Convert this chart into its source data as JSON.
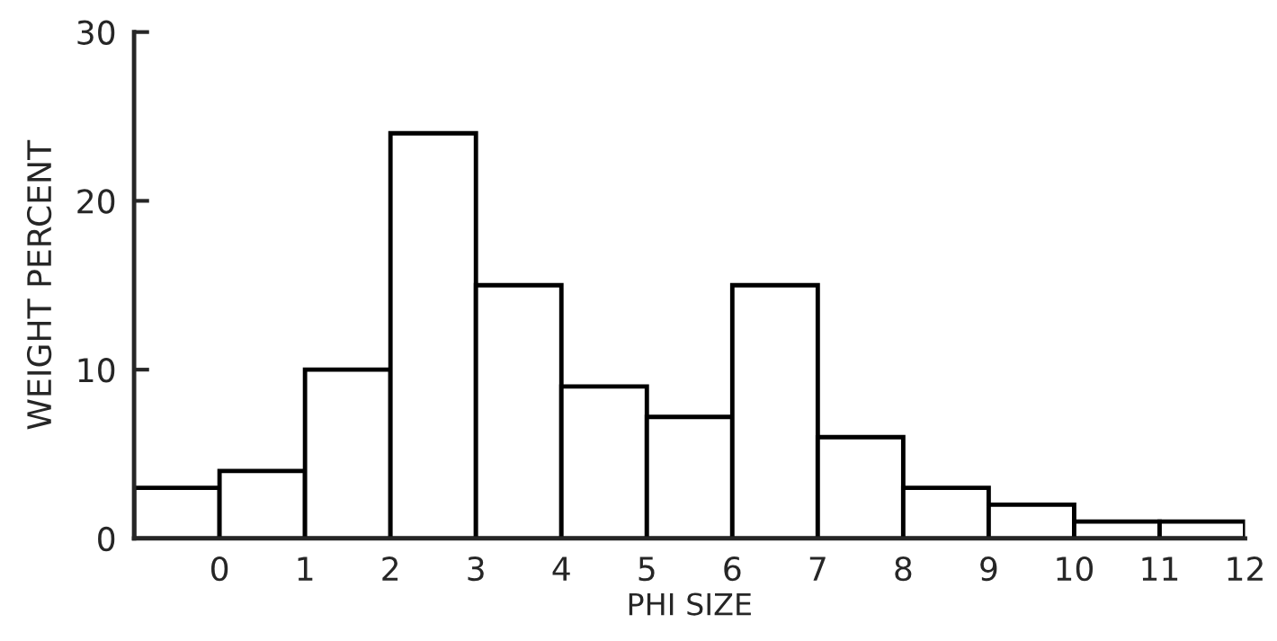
{
  "chart_data": {
    "type": "histogram",
    "xlabel": "PHI SIZE",
    "ylabel": "WEIGHT PERCENT",
    "bins": [
      -1,
      0,
      1,
      2,
      3,
      4,
      5,
      6,
      7,
      8,
      9,
      10,
      11,
      12
    ],
    "values": [
      3,
      4,
      10,
      24,
      15,
      9,
      7.2,
      15,
      6,
      3,
      2,
      1,
      1
    ],
    "color": "#ffffff",
    "xlim": [
      -1,
      12
    ],
    "xticks": [
      0,
      1,
      2,
      3,
      4,
      5,
      6,
      7,
      8,
      9,
      10,
      11,
      12
    ],
    "ylim": [
      0,
      30
    ],
    "yticks": [
      0,
      10,
      20,
      30
    ],
    "grid": false
  }
}
